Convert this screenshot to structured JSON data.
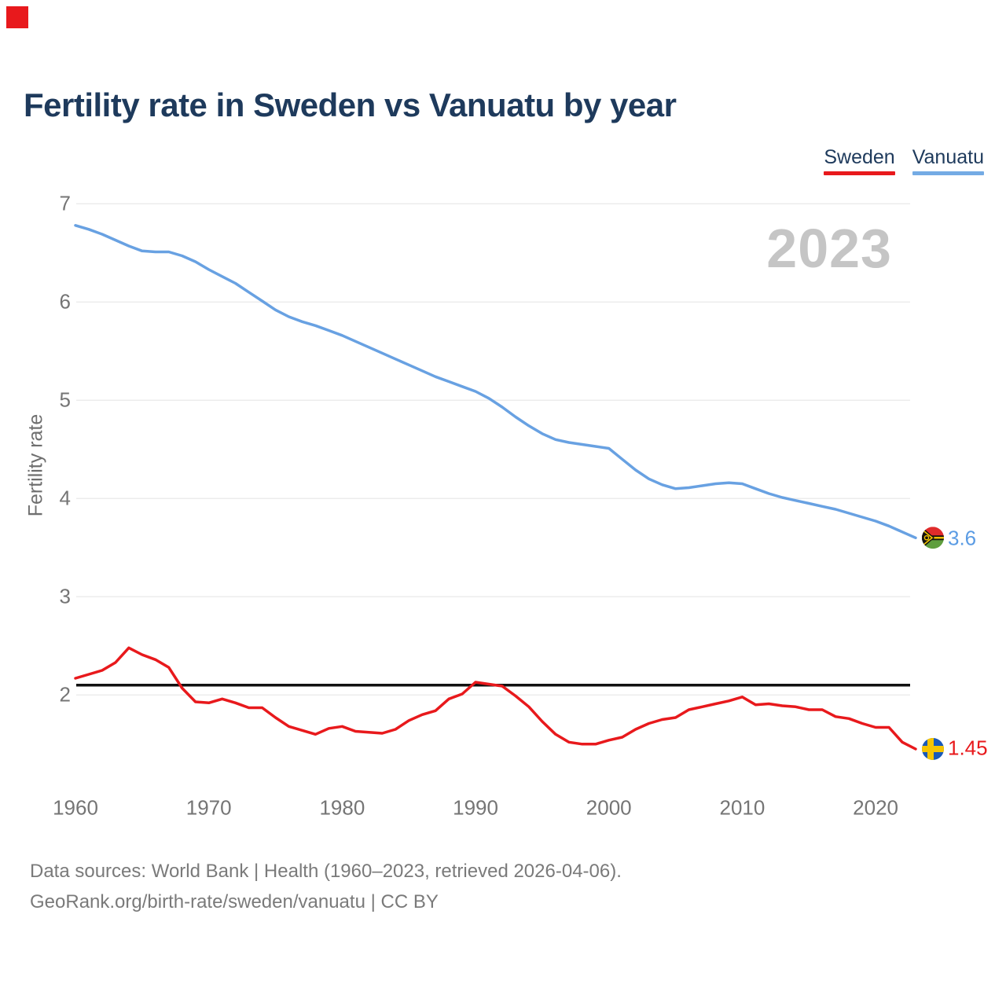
{
  "title": "Fertility rate in Sweden vs Vanuatu by year",
  "legend": {
    "items": [
      {
        "label": "Sweden",
        "color": "#e8191c"
      },
      {
        "label": "Vanuatu",
        "color": "#74abe4"
      }
    ]
  },
  "watermark": "2023",
  "series_end_labels": {
    "vanuatu": {
      "value": "3.6",
      "flag_icon": "vanuatu-flag-icon",
      "color": "#5b9ce4"
    },
    "sweden": {
      "value": "1.45",
      "flag_icon": "sweden-flag-icon",
      "color": "#e8191c"
    }
  },
  "footer": {
    "line1": "Data sources: World Bank | Health (1960–2023, retrieved 2026-04-06).",
    "line2": "GeoRank.org/birth-rate/sweden/vanuatu | CC BY"
  },
  "chart_data": {
    "type": "line",
    "title": "Fertility rate in Sweden vs Vanuatu by year",
    "ylabel": "Fertility rate",
    "xlabel": "",
    "grid": true,
    "legend_position": "top-right",
    "ylim": [
      1.2,
      7.3
    ],
    "yticks": [
      7,
      6,
      5,
      4,
      3,
      2
    ],
    "xticks": [
      1960,
      1970,
      1980,
      1990,
      2000,
      2010,
      2020
    ],
    "x": [
      1960,
      1961,
      1962,
      1963,
      1964,
      1965,
      1966,
      1967,
      1968,
      1969,
      1970,
      1971,
      1972,
      1973,
      1974,
      1975,
      1976,
      1977,
      1978,
      1979,
      1980,
      1981,
      1982,
      1983,
      1984,
      1985,
      1986,
      1987,
      1988,
      1989,
      1990,
      1991,
      1992,
      1993,
      1994,
      1995,
      1996,
      1997,
      1998,
      1999,
      2000,
      2001,
      2002,
      2003,
      2004,
      2005,
      2006,
      2007,
      2008,
      2009,
      2010,
      2011,
      2012,
      2013,
      2014,
      2015,
      2016,
      2017,
      2018,
      2019,
      2020,
      2021,
      2022,
      2023
    ],
    "series": [
      {
        "name": "Vanuatu",
        "color": "#68a1e2",
        "values": [
          6.78,
          6.74,
          6.69,
          6.63,
          6.57,
          6.52,
          6.51,
          6.51,
          6.47,
          6.41,
          6.33,
          6.26,
          6.19,
          6.1,
          6.01,
          5.92,
          5.85,
          5.8,
          5.76,
          5.71,
          5.66,
          5.6,
          5.54,
          5.48,
          5.42,
          5.36,
          5.3,
          5.24,
          5.19,
          5.14,
          5.09,
          5.02,
          4.93,
          4.83,
          4.74,
          4.66,
          4.6,
          4.57,
          4.55,
          4.53,
          4.51,
          4.4,
          4.29,
          4.2,
          4.14,
          4.1,
          4.11,
          4.13,
          4.15,
          4.16,
          4.15,
          4.1,
          4.05,
          4.01,
          3.98,
          3.95,
          3.92,
          3.89,
          3.85,
          3.81,
          3.77,
          3.72,
          3.66,
          3.6
        ],
        "end_value": 3.6
      },
      {
        "name": "Sweden",
        "color": "#e8191c",
        "values": [
          2.17,
          2.21,
          2.25,
          2.33,
          2.48,
          2.41,
          2.36,
          2.28,
          2.07,
          1.93,
          1.92,
          1.96,
          1.92,
          1.87,
          1.87,
          1.77,
          1.68,
          1.64,
          1.6,
          1.66,
          1.68,
          1.63,
          1.62,
          1.61,
          1.65,
          1.74,
          1.8,
          1.84,
          1.96,
          2.01,
          2.13,
          2.11,
          2.09,
          1.99,
          1.88,
          1.73,
          1.6,
          1.52,
          1.5,
          1.5,
          1.54,
          1.57,
          1.65,
          1.71,
          1.75,
          1.77,
          1.85,
          1.88,
          1.91,
          1.94,
          1.98,
          1.9,
          1.91,
          1.89,
          1.88,
          1.85,
          1.85,
          1.78,
          1.76,
          1.71,
          1.67,
          1.67,
          1.52,
          1.45
        ],
        "end_value": 1.45
      }
    ],
    "reference_line": {
      "value": 2.1,
      "color": "#111111"
    },
    "gridline_color": "#ececec"
  }
}
